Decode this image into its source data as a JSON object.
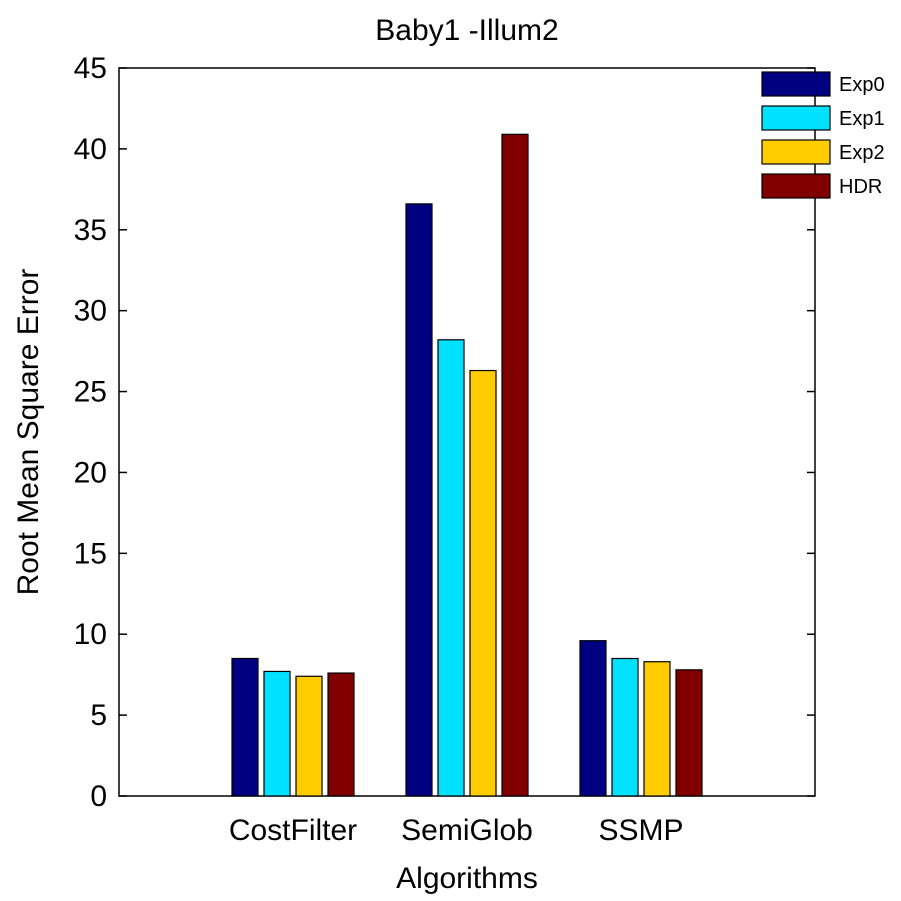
{
  "chart_data": {
    "type": "bar",
    "title": "Baby1 -Illum2",
    "xlabel": "Algorithms",
    "ylabel": "Root Mean Square Error",
    "categories": [
      "CostFilter",
      "SemiGlob",
      "SSMP"
    ],
    "series": [
      {
        "name": "Exp0",
        "color": "#000080",
        "values": [
          8.5,
          36.6,
          9.6
        ]
      },
      {
        "name": "Exp1",
        "color": "#00e0ff",
        "values": [
          7.7,
          28.2,
          8.5
        ]
      },
      {
        "name": "Exp2",
        "color": "#ffcc00",
        "values": [
          7.4,
          26.3,
          8.3
        ]
      },
      {
        "name": "HDR",
        "color": "#800000",
        "values": [
          7.6,
          40.9,
          7.8
        ]
      }
    ],
    "ylim": [
      0,
      45
    ],
    "yticks": [
      "0",
      "5",
      "10",
      "15",
      "20",
      "25",
      "30",
      "35",
      "40",
      "45"
    ],
    "grid": false,
    "legend_position": "top-right"
  }
}
